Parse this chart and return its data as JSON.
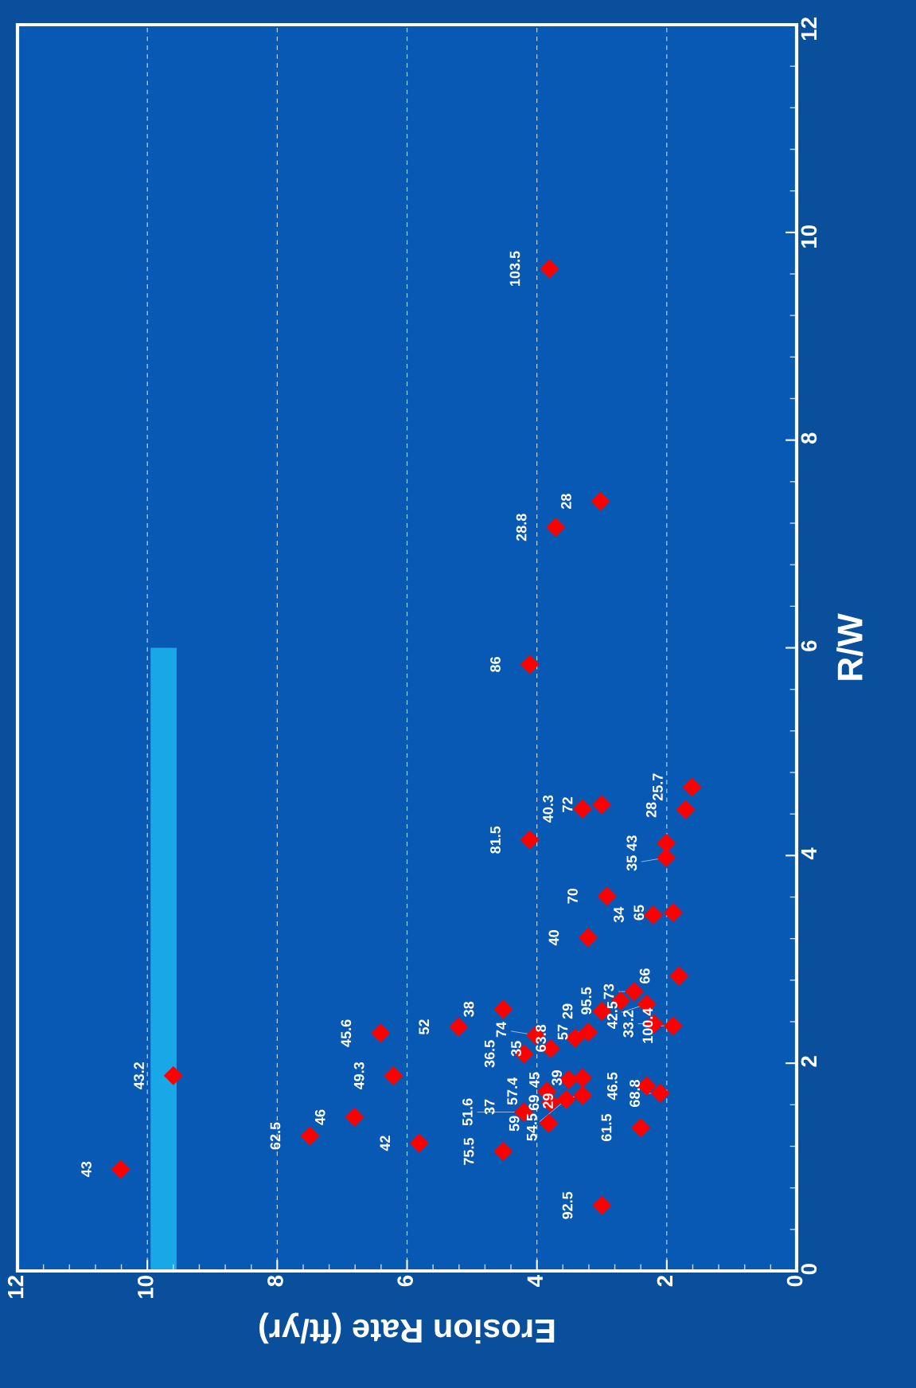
{
  "chart_data": {
    "type": "scatter",
    "xlabel": "Erosion Rate (ft/yr)",
    "ylabel": "R/W",
    "xlim": [
      12,
      0
    ],
    "xticks": [
      12,
      10,
      8,
      6,
      4,
      2,
      0
    ],
    "ylim": [
      0,
      12
    ],
    "yticks": [
      0,
      2,
      4,
      6,
      8,
      10,
      12
    ],
    "grid": "x",
    "marker": "diamond",
    "series": [
      {
        "type": "bar",
        "color": "#18a8e8",
        "x": [
          9.75
        ],
        "values": [
          6
        ]
      },
      {
        "color": "#ff0000",
        "x": [
          10.41,
          9.6,
          7.5,
          6.81,
          6.21,
          6.41,
          5.81,
          5.21,
          4.52,
          4.52,
          4.2,
          4.02,
          3.79,
          3.41,
          3.21,
          4.2,
          3.85,
          3.82,
          3.79,
          3.51,
          3.3,
          3.3,
          3.55,
          3.0,
          2.71,
          2.5,
          2.31,
          2.2,
          1.9,
          1.81,
          2.4,
          2.31,
          2.1,
          3.0,
          4.11,
          3.3,
          3.0,
          1.61,
          1.71,
          2.01,
          2.01,
          2.92,
          3.21,
          2.21,
          1.9,
          3.81,
          3.71,
          3.02,
          4.11
        ],
        "values": [
          0.98,
          1.88,
          1.3,
          1.48,
          1.88,
          2.29,
          1.23,
          2.35,
          2.52,
          1.15,
          2.09,
          2.27,
          2.14,
          2.24,
          2.3,
          1.53,
          1.73,
          1.42,
          1.62,
          1.84,
          1.86,
          1.69,
          1.65,
          2.5,
          2.6,
          2.69,
          2.57,
          2.38,
          2.36,
          2.84,
          1.38,
          1.78,
          1.71,
          0.63,
          4.15,
          4.45,
          4.49,
          4.66,
          4.44,
          4.12,
          3.98,
          3.61,
          3.21,
          3.43,
          3.45,
          9.65,
          7.16,
          7.41,
          5.84
        ]
      }
    ],
    "annotations": [
      {
        "text": "43",
        "x": 10.41,
        "y": 0.98
      },
      {
        "text": "43.2",
        "x": 9.6,
        "y": 1.88
      },
      {
        "text": "62.5",
        "x": 7.5,
        "y": 1.3
      },
      {
        "text": "46",
        "x": 6.81,
        "y": 1.48
      },
      {
        "text": "49.3",
        "x": 6.21,
        "y": 1.88
      },
      {
        "text": "45.6",
        "x": 6.41,
        "y": 2.29
      },
      {
        "text": "42",
        "x": 5.81,
        "y": 1.23
      },
      {
        "text": "52",
        "x": 5.21,
        "y": 2.35
      },
      {
        "text": "38",
        "x": 4.52,
        "y": 2.52
      },
      {
        "text": "75.5",
        "x": 4.52,
        "y": 1.15
      },
      {
        "text": "36.5",
        "x": 4.2,
        "y": 2.09
      },
      {
        "text": "74",
        "x": 4.02,
        "y": 2.27
      },
      {
        "text": "35",
        "x": 3.79,
        "y": 2.14
      },
      {
        "text": "63.8",
        "x": 3.41,
        "y": 2.24
      },
      {
        "text": "57",
        "x": 3.21,
        "y": 2.3
      },
      {
        "text": "37",
        "x": 4.2,
        "y": 1.58
      },
      {
        "text": "51.6",
        "x": 4.2,
        "y": 1.53
      },
      {
        "text": "57.4",
        "x": 3.85,
        "y": 1.73
      },
      {
        "text": "59",
        "x": 3.82,
        "y": 1.42
      },
      {
        "text": "69",
        "x": 3.79,
        "y": 1.62
      },
      {
        "text": "45",
        "x": 3.51,
        "y": 1.84
      },
      {
        "text": "39",
        "x": 3.3,
        "y": 1.86
      },
      {
        "text": "29",
        "x": 3.3,
        "y": 1.69
      },
      {
        "text": "54.5",
        "x": 3.55,
        "y": 1.65
      },
      {
        "text": "29",
        "x": 3.0,
        "y": 2.5
      },
      {
        "text": "95.5",
        "x": 2.71,
        "y": 2.6
      },
      {
        "text": "73",
        "x": 2.5,
        "y": 2.69
      },
      {
        "text": "42.5",
        "x": 2.31,
        "y": 2.57
      },
      {
        "text": "33.2",
        "x": 2.2,
        "y": 2.38
      },
      {
        "text": "100.4",
        "x": 1.9,
        "y": 2.36
      },
      {
        "text": "66",
        "x": 1.81,
        "y": 2.84
      },
      {
        "text": "61.5",
        "x": 2.4,
        "y": 1.38
      },
      {
        "text": "46.5",
        "x": 2.31,
        "y": 1.78
      },
      {
        "text": "68.8",
        "x": 2.1,
        "y": 1.71
      },
      {
        "text": "92.5",
        "x": 3.0,
        "y": 0.63
      },
      {
        "text": "81.5",
        "x": 4.11,
        "y": 4.15
      },
      {
        "text": "40.3",
        "x": 3.3,
        "y": 4.45
      },
      {
        "text": "72",
        "x": 3.0,
        "y": 4.49
      },
      {
        "text": "25.7",
        "x": 1.61,
        "y": 4.66
      },
      {
        "text": "28",
        "x": 1.71,
        "y": 4.44
      },
      {
        "text": "43",
        "x": 2.01,
        "y": 4.12
      },
      {
        "text": "35",
        "x": 2.01,
        "y": 3.98
      },
      {
        "text": "70",
        "x": 2.92,
        "y": 3.61
      },
      {
        "text": "40",
        "x": 3.21,
        "y": 3.21
      },
      {
        "text": "34",
        "x": 2.21,
        "y": 3.43
      },
      {
        "text": "65",
        "x": 1.9,
        "y": 3.45
      },
      {
        "text": "103.5",
        "x": 3.81,
        "y": 9.65
      },
      {
        "text": "28.8",
        "x": 3.71,
        "y": 7.16
      },
      {
        "text": "28",
        "x": 3.02,
        "y": 7.41
      },
      {
        "text": "86",
        "x": 4.11,
        "y": 5.84
      }
    ]
  }
}
